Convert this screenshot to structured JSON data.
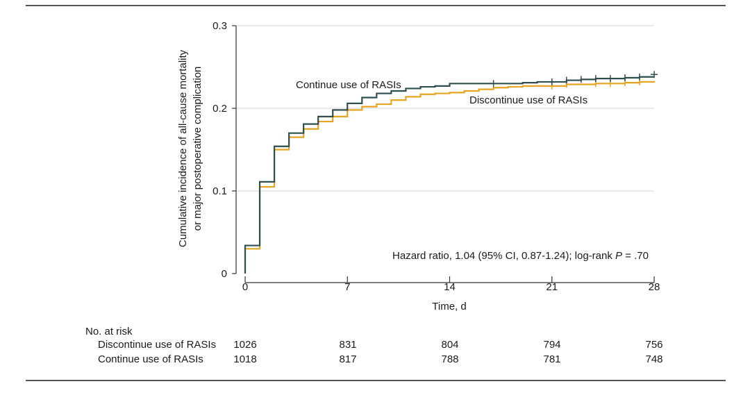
{
  "colors": {
    "continue": "#2f4f4f",
    "discontinue": "#e8a323",
    "gridline": "#d4d4d4",
    "axis": "#333333",
    "rule": "#555555"
  },
  "chart_data": {
    "type": "line",
    "subtype": "kaplan-meier-step",
    "title": "",
    "xlabel": "Time, d",
    "ylabel_lines": [
      "Cumulative incidence of all-cause mortality",
      "or major postoperative complication"
    ],
    "xlim": [
      0,
      28
    ],
    "ylim": [
      0,
      0.3
    ],
    "x_ticks": [
      0,
      7,
      14,
      21,
      28
    ],
    "y_ticks": [
      0,
      0.1,
      0.2,
      0.3
    ],
    "y_tick_labels": [
      "0",
      "0.1",
      "0.2",
      "0.3"
    ],
    "grid": true,
    "annotation_text": "Hazard ratio, 1.04 (95% CI, 0.87-1.24); log-rank ",
    "annotation_p_symbol": "P",
    "annotation_p_value": " = .70",
    "series": [
      {
        "name": "Continue use of RASIs",
        "color_key": "continue",
        "steps": [
          [
            0,
            0
          ],
          [
            0,
            0.034
          ],
          [
            1,
            0.111
          ],
          [
            2,
            0.154
          ],
          [
            3,
            0.17
          ],
          [
            4,
            0.181
          ],
          [
            5,
            0.19
          ],
          [
            6,
            0.198
          ],
          [
            7,
            0.206
          ],
          [
            8,
            0.213
          ],
          [
            9,
            0.218
          ],
          [
            10,
            0.221
          ],
          [
            11,
            0.224
          ],
          [
            12,
            0.226
          ],
          [
            13,
            0.227
          ],
          [
            14,
            0.23
          ],
          [
            16,
            0.23
          ],
          [
            18,
            0.23
          ],
          [
            19,
            0.231
          ],
          [
            20,
            0.232
          ],
          [
            22,
            0.234
          ],
          [
            23,
            0.235
          ],
          [
            24,
            0.236
          ],
          [
            26,
            0.237
          ],
          [
            27,
            0.238
          ],
          [
            28,
            0.238
          ]
        ],
        "censor_x": [
          17,
          21,
          22,
          23,
          24,
          25,
          26,
          27,
          28
        ],
        "censor_end_y": 0.241
      },
      {
        "name": "Discontinue use of RASIs",
        "color_key": "discontinue",
        "steps": [
          [
            0,
            0
          ],
          [
            0,
            0.03
          ],
          [
            1,
            0.105
          ],
          [
            2,
            0.15
          ],
          [
            3,
            0.165
          ],
          [
            4,
            0.175
          ],
          [
            5,
            0.184
          ],
          [
            6,
            0.19
          ],
          [
            7,
            0.198
          ],
          [
            8,
            0.202
          ],
          [
            9,
            0.205
          ],
          [
            10,
            0.21
          ],
          [
            11,
            0.214
          ],
          [
            12,
            0.217
          ],
          [
            13,
            0.218
          ],
          [
            14,
            0.219
          ],
          [
            15,
            0.221
          ],
          [
            16,
            0.223
          ],
          [
            17,
            0.225
          ],
          [
            18,
            0.226
          ],
          [
            19,
            0.227
          ],
          [
            21,
            0.227
          ],
          [
            22,
            0.229
          ],
          [
            24,
            0.23
          ],
          [
            25,
            0.23
          ],
          [
            26,
            0.231
          ],
          [
            27,
            0.232
          ],
          [
            28,
            0.233
          ]
        ],
        "censor_x": [
          21,
          22,
          24,
          25,
          26,
          27
        ]
      }
    ],
    "series_labels": [
      "Continue use of RASIs",
      "Discontinue use of RASIs"
    ],
    "risk_table": {
      "title": "No. at risk",
      "times": [
        0,
        7,
        14,
        21,
        28
      ],
      "rows": [
        {
          "label": "Discontinue use of RASIs",
          "values": [
            "1026",
            "831",
            "804",
            "794",
            "756"
          ]
        },
        {
          "label": "Continue use of RASIs",
          "values": [
            "1018",
            "817",
            "788",
            "781",
            "748"
          ]
        }
      ]
    }
  }
}
